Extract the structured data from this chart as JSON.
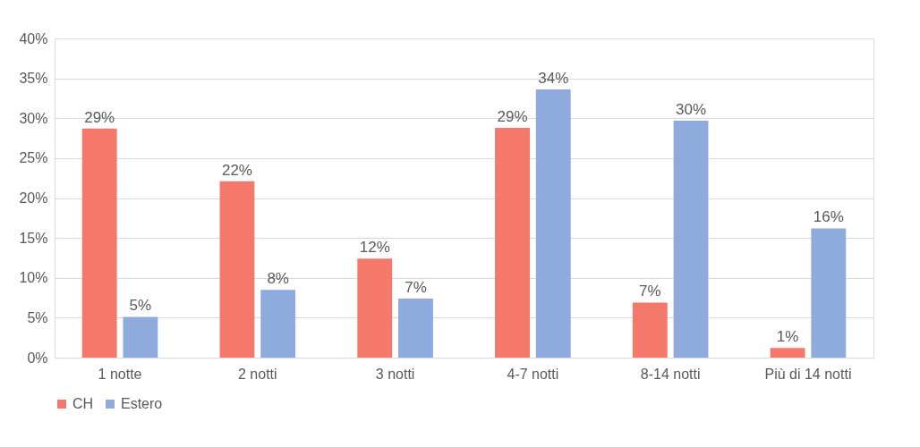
{
  "chart_data": {
    "type": "bar",
    "categories": [
      "1 notte",
      "2 notti",
      "3 notti",
      "4-7 notti",
      "8-14 notti",
      "Più di 14 notti"
    ],
    "series": [
      {
        "name": "CH",
        "color": "#f4796b",
        "values": [
          28.7,
          22.1,
          12.4,
          28.8,
          6.9,
          1.2
        ],
        "value_labels": [
          "29%",
          "22%",
          "12%",
          "29%",
          "7%",
          "1%"
        ]
      },
      {
        "name": "Estero",
        "color": "#8faadc",
        "values": [
          5.1,
          8.5,
          7.4,
          33.6,
          29.7,
          16.2
        ],
        "value_labels": [
          "5%",
          "8%",
          "7%",
          "34%",
          "30%",
          "16%"
        ]
      }
    ],
    "ylim": [
      0,
      40
    ],
    "yticks": [
      {
        "value": 0,
        "label": "0%"
      },
      {
        "value": 5,
        "label": "5%"
      },
      {
        "value": 10,
        "label": "10%"
      },
      {
        "value": 15,
        "label": "15%"
      },
      {
        "value": 20,
        "label": "20%"
      },
      {
        "value": 25,
        "label": "25%"
      },
      {
        "value": 30,
        "label": "30%"
      },
      {
        "value": 35,
        "label": "35%"
      },
      {
        "value": 40,
        "label": "40%"
      }
    ],
    "grid": "y",
    "legend": "bottom"
  }
}
